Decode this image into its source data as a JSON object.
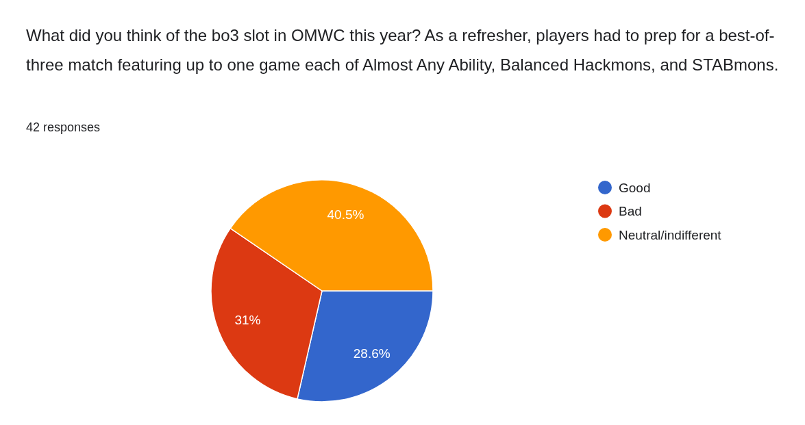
{
  "chart_data": {
    "type": "pie",
    "title": "What did you think of the bo3 slot in OMWC this year? As a refresher, players had to prep for a best-of-three match featuring up to one game each of Almost Any Ability, Balanced Hackmons, and STABmons.",
    "subtitle": "42 responses",
    "categories": [
      "Good",
      "Bad",
      "Neutral/indifferent"
    ],
    "values": [
      28.6,
      31,
      40.5
    ],
    "value_labels": [
      "28.6%",
      "31%",
      "40.5%"
    ],
    "colors": [
      "#3366cc",
      "#dc3912",
      "#ff9900"
    ],
    "legend": "right"
  }
}
